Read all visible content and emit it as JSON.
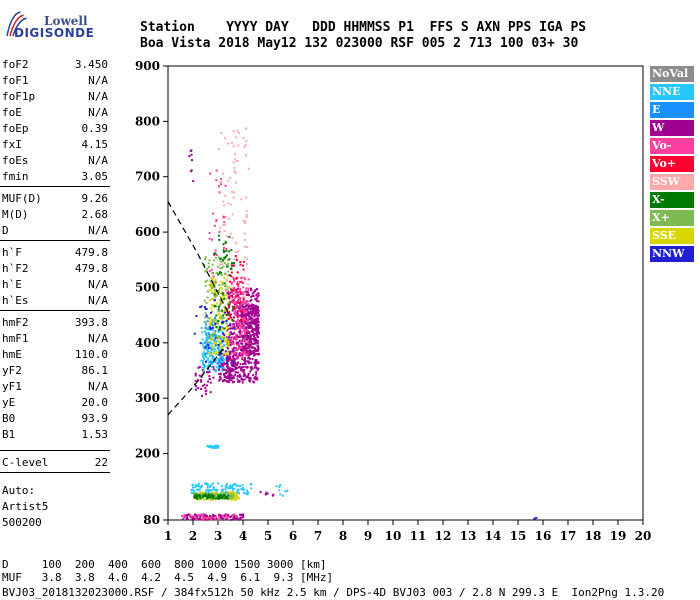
{
  "logo": {
    "line1": "Lowell",
    "line2": "DIGISONDE"
  },
  "header": {
    "line1": "Station    YYYY DAY   DDD HHMMSS P1  FFS S AXN PPS IGA PS",
    "line2": "Boa Vista 2018 May12 132 023000 RSF 005 2 713 100 03+ 30"
  },
  "params": [
    {
      "name": "foF2",
      "value": "3.450"
    },
    {
      "name": "foF1",
      "value": "N/A"
    },
    {
      "name": "foF1p",
      "value": "N/A"
    },
    {
      "name": "foE",
      "value": "N/A"
    },
    {
      "name": "foEp",
      "value": "0.39"
    },
    {
      "name": "fxI",
      "value": "4.15"
    },
    {
      "name": "foEs",
      "value": "N/A"
    },
    {
      "name": "fmin",
      "value": "3.05"
    },
    {
      "name": "MUF(D)",
      "value": "9.26"
    },
    {
      "name": "M(D)",
      "value": "2.68"
    },
    {
      "name": "D",
      "value": "N/A"
    },
    {
      "name": "h`F",
      "value": "479.8"
    },
    {
      "name": "h`F2",
      "value": "479.8"
    },
    {
      "name": "h`E",
      "value": "N/A"
    },
    {
      "name": "h`Es",
      "value": "N/A"
    },
    {
      "name": "hmF2",
      "value": "393.8"
    },
    {
      "name": "hmF1",
      "value": "N/A"
    },
    {
      "name": "hmE",
      "value": "110.0"
    },
    {
      "name": "yF2",
      "value": "86.1"
    },
    {
      "name": "yF1",
      "value": "N/A"
    },
    {
      "name": "yE",
      "value": "20.0"
    },
    {
      "name": "B0",
      "value": "93.9"
    },
    {
      "name": "B1",
      "value": "1.53"
    },
    {
      "name": "C-level",
      "value": "22"
    }
  ],
  "autoscale": {
    "line1": "Auto:",
    "line2": "Artist5",
    "line3": "500200"
  },
  "legend": [
    {
      "label": "NoVal",
      "color": "#8c8c8c"
    },
    {
      "label": "NNE",
      "color": "#29c6ff"
    },
    {
      "label": "E",
      "color": "#1a90ff"
    },
    {
      "label": "W",
      "color": "#a00090"
    },
    {
      "label": "Vo-",
      "color": "#ff3fa0"
    },
    {
      "label": "Vo+",
      "color": "#ff0030"
    },
    {
      "label": "SSW",
      "color": "#ffaaaa"
    },
    {
      "label": "X-",
      "color": "#007a00"
    },
    {
      "label": "X+",
      "color": "#7dba52"
    },
    {
      "label": "SSE",
      "color": "#d6d600"
    },
    {
      "label": "NNW",
      "color": "#2020d0"
    }
  ],
  "footer": {
    "line1": "D     100  200  400  600  800 1000 1500 3000 [km]",
    "line2": "MUF   3.8  3.8  4.0  4.2  4.5  4.9  6.1  9.3 [MHz]",
    "line3": "BVJ03_2018132023000.RSF / 384fx512h 50 kHz 2.5 km / DPS-4D BVJ03 003 / 2.8 N 299.3 E  Ion2Png 1.3.20"
  },
  "chart_data": {
    "type": "scatter",
    "xlim": [
      1,
      20
    ],
    "ylim": [
      80,
      900
    ],
    "xticks": [
      "1",
      "2",
      "3",
      "4",
      "5",
      "6",
      "7",
      "8",
      "9",
      "10",
      "11",
      "12",
      "13",
      "14",
      "15",
      "16",
      "17",
      "18",
      "19",
      "20"
    ],
    "yticks": [
      "80",
      "200",
      "300",
      "400",
      "500",
      "600",
      "700",
      "800",
      "900"
    ],
    "grid": false,
    "legend_position": "right",
    "clusters": [
      {
        "color": "#a00090",
        "x": [
          3.3,
          4.6
        ],
        "y": [
          330,
          500
        ],
        "n": 520
      },
      {
        "color": "#a00090",
        "x": [
          3.9,
          4.6
        ],
        "y": [
          380,
          470
        ],
        "n": 260
      },
      {
        "color": "#a00090",
        "x": [
          3.0,
          3.6
        ],
        "y": [
          330,
          380
        ],
        "n": 110
      },
      {
        "color": "#a00090",
        "x": [
          2.0,
          2.8
        ],
        "y": [
          305,
          360
        ],
        "n": 40
      },
      {
        "color": "#ff3fa0",
        "x": [
          3.5,
          4.2
        ],
        "y": [
          370,
          520
        ],
        "n": 160
      },
      {
        "color": "#ff3fa0",
        "x": [
          2.6,
          3.3
        ],
        "y": [
          500,
          720
        ],
        "n": 35
      },
      {
        "color": "#29c6ff",
        "x": [
          2.3,
          3.2
        ],
        "y": [
          350,
          430
        ],
        "n": 170
      },
      {
        "color": "#1a90ff",
        "x": [
          2.4,
          3.2
        ],
        "y": [
          360,
          450
        ],
        "n": 60
      },
      {
        "color": "#d6d600",
        "x": [
          2.6,
          3.4
        ],
        "y": [
          380,
          520
        ],
        "n": 140
      },
      {
        "color": "#7dba52",
        "x": [
          2.4,
          3.4
        ],
        "y": [
          390,
          560
        ],
        "n": 100
      },
      {
        "color": "#007a00",
        "x": [
          2.8,
          3.6
        ],
        "y": [
          420,
          600
        ],
        "n": 60
      },
      {
        "color": "#ffaaaa",
        "x": [
          3.0,
          4.2
        ],
        "y": [
          480,
          790
        ],
        "n": 90
      },
      {
        "color": "#ff0030",
        "x": [
          3.3,
          4.0
        ],
        "y": [
          440,
          560
        ],
        "n": 35
      },
      {
        "color": "#2020d0",
        "x": [
          2.0,
          3.6
        ],
        "y": [
          360,
          480
        ],
        "n": 40
      },
      {
        "color": "#29c6ff",
        "x": [
          2.5,
          3.0
        ],
        "y": [
          212,
          216
        ],
        "n": 35
      },
      {
        "color": "#29c6ff",
        "x": [
          1.9,
          4.3
        ],
        "y": [
          128,
          148
        ],
        "n": 120
      },
      {
        "color": "#d6d600",
        "x": [
          2.0,
          3.8
        ],
        "y": [
          118,
          132
        ],
        "n": 140
      },
      {
        "color": "#7dba52",
        "x": [
          2.0,
          3.6
        ],
        "y": [
          120,
          130
        ],
        "n": 90
      },
      {
        "color": "#007a00",
        "x": [
          2.0,
          3.4
        ],
        "y": [
          120,
          128
        ],
        "n": 60
      },
      {
        "color": "#a00090",
        "x": [
          1.5,
          4.0
        ],
        "y": [
          82,
          92
        ],
        "n": 110
      },
      {
        "color": "#ff3fa0",
        "x": [
          1.5,
          3.8
        ],
        "y": [
          82,
          92
        ],
        "n": 40
      },
      {
        "color": "#a00090",
        "x": [
          4.6,
          5.2
        ],
        "y": [
          125,
          135
        ],
        "n": 6
      },
      {
        "color": "#29c6ff",
        "x": [
          5.3,
          5.8
        ],
        "y": [
          125,
          145
        ],
        "n": 8
      },
      {
        "color": "#2020d0",
        "x": [
          15.6,
          15.7
        ],
        "y": [
          83,
          86
        ],
        "n": 2
      },
      {
        "color": "#a00090",
        "x": [
          1.8,
          2.1
        ],
        "y": [
          690,
          750
        ],
        "n": 8
      }
    ],
    "trace_segments": [
      {
        "x": [
          1.0,
          2.2,
          3.0,
          3.4
        ],
        "y": [
          655,
          560,
          490,
          455
        ]
      },
      {
        "x": [
          1.0,
          2.0,
          2.7,
          3.3
        ],
        "y": [
          270,
          320,
          360,
          395
        ]
      }
    ]
  }
}
